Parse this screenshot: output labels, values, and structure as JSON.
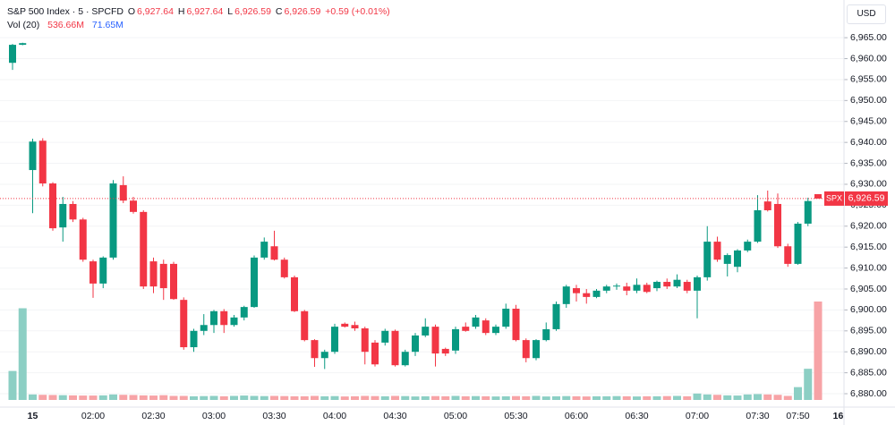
{
  "chart_data": {
    "type": "candlestick",
    "legend": {
      "symbol": "S&P 500 Index · 5 · SPCFD",
      "o_label": "O",
      "o": "6,927.64",
      "h_label": "H",
      "h": "6,927.64",
      "l_label": "L",
      "l": "6,926.59",
      "c_label": "C",
      "c": "6,926.59",
      "change": "+0.59 (+0.01%)"
    },
    "volume_legend": {
      "name": "Vol (20)",
      "volume": "536.66M",
      "average": "71.65M"
    },
    "currency": "USD",
    "last_price": {
      "value": 6926.59,
      "label": "6,926.59",
      "tag": "SPX"
    },
    "categories": [
      null,
      null,
      "15",
      null,
      null,
      null,
      null,
      null,
      "02:00",
      null,
      null,
      null,
      null,
      null,
      "02:30",
      null,
      null,
      null,
      null,
      null,
      "03:00",
      null,
      null,
      null,
      null,
      null,
      "03:30",
      null,
      null,
      null,
      null,
      null,
      "04:00",
      null,
      null,
      null,
      null,
      null,
      "04:30",
      null,
      null,
      null,
      null,
      null,
      "05:00",
      null,
      null,
      null,
      null,
      null,
      "05:30",
      null,
      null,
      null,
      null,
      null,
      "06:00",
      null,
      null,
      null,
      null,
      null,
      "06:30",
      null,
      null,
      null,
      null,
      null,
      "07:00",
      null,
      null,
      null,
      null,
      null,
      "07:30",
      null,
      null,
      null,
      "07:50",
      null,
      null,
      null,
      "16"
    ],
    "open": [
      6959.0,
      6963.3,
      6933.4,
      6940.4,
      6930.2,
      6919.7,
      6925.3,
      6921.6,
      6911.6,
      6906.3,
      6912.5,
      6929.8,
      6926.1,
      6923.4,
      6911.6,
      6911.0,
      6911.0,
      6902.4,
      6891.1,
      6895.0,
      6896.4,
      6899.7,
      6896.4,
      6898.2,
      6900.7,
      6912.5,
      6915.2,
      6912.0,
      6907.8,
      6899.7,
      6892.8,
      6888.5,
      6890.0,
      6896.7,
      6896.4,
      6895.6,
      6892.2,
      6892.2,
      6895.0,
      6886.8,
      6890.0,
      6893.9,
      6896.0,
      6890.7,
      6890.3,
      6896.0,
      6896.0,
      6897.5,
      6894.5,
      6896.0,
      6900.3,
      6892.8,
      6888.5,
      6892.8,
      6895.4,
      6901.4,
      6905.2,
      6904.0,
      6903.1,
      6904.6,
      6905.6,
      6905.6,
      6904.6,
      6906.0,
      6905.2,
      6906.7,
      6905.6,
      6906.7,
      6904.6,
      6907.8,
      6916.3,
      6911.0,
      6910.3,
      6914.2,
      6916.3,
      6925.9,
      6925.3,
      6915.2,
      6911.0,
      6920.6,
      6927.64,
      null,
      null
    ],
    "high": [
      6963.5,
      6963.8,
      6940.9,
      6941.0,
      6930.5,
      6927.0,
      6926.0,
      6922.0,
      6912.0,
      6912.8,
      6931.0,
      6931.9,
      6927.0,
      6923.8,
      6912.5,
      6912.0,
      6911.5,
      6903.0,
      6895.5,
      6899.0,
      6900.0,
      6900.2,
      6898.8,
      6901.0,
      6913.0,
      6917.3,
      6918.9,
      6912.5,
      6908.2,
      6900.0,
      6893.0,
      6890.5,
      6896.7,
      6897.0,
      6897.2,
      6896.0,
      6892.8,
      6895.5,
      6895.3,
      6890.5,
      6894.5,
      6898.0,
      6896.5,
      6891.0,
      6896.0,
      6897.0,
      6898.8,
      6898.0,
      6896.5,
      6901.5,
      6901.2,
      6893.2,
      6893.0,
      6897.0,
      6902.0,
      6906.0,
      6906.0,
      6905.0,
      6905.0,
      6906.0,
      6906.3,
      6906.5,
      6907.5,
      6906.5,
      6907.0,
      6907.5,
      6908.5,
      6907.2,
      6908.2,
      6920.0,
      6917.5,
      6913.5,
      6914.5,
      6916.8,
      6927.4,
      6928.5,
      6927.8,
      6915.8,
      6921.0,
      6926.8,
      6927.64,
      null,
      null
    ],
    "low": [
      6957.3,
      6963.2,
      6923.1,
      6929.5,
      6918.9,
      6916.3,
      6921.0,
      6911.5,
      6902.9,
      6905.2,
      6912.0,
      6925.5,
      6923.0,
      6905.0,
      6904.0,
      6902.4,
      6902.4,
      6890.5,
      6890.0,
      6894.0,
      6894.5,
      6894.5,
      6896.0,
      6897.5,
      6900.5,
      6912.0,
      6911.8,
      6907.5,
      6899.5,
      6892.5,
      6886.4,
      6885.9,
      6889.5,
      6895.8,
      6895.0,
      6887.0,
      6886.5,
      6891.5,
      6886.5,
      6886.5,
      6889.0,
      6893.5,
      6886.5,
      6889.0,
      6889.5,
      6894.8,
      6895.5,
      6894.0,
      6894.0,
      6895.5,
      6892.5,
      6887.5,
      6888.0,
      6892.5,
      6895.0,
      6900.5,
      6902.0,
      6901.5,
      6902.8,
      6904.0,
      6904.8,
      6903.5,
      6904.0,
      6904.0,
      6904.5,
      6905.0,
      6905.2,
      6904.0,
      6898.0,
      6907.0,
      6911.5,
      6908.0,
      6909.0,
      6913.8,
      6916.0,
      6923.5,
      6914.8,
      6910.3,
      6910.8,
      6920.0,
      6926.59,
      null,
      null
    ],
    "close": [
      6963.3,
      6963.7,
      6940.2,
      6930.2,
      6919.5,
      6925.3,
      6921.6,
      6912.0,
      6906.3,
      6912.5,
      6930.2,
      6926.1,
      6923.4,
      6905.6,
      6905.6,
      6905.2,
      6902.6,
      6891.1,
      6895.0,
      6896.4,
      6899.7,
      6896.4,
      6898.2,
      6900.7,
      6912.5,
      6916.3,
      6912.0,
      6907.8,
      6899.7,
      6892.8,
      6888.5,
      6890.0,
      6896.0,
      6896.0,
      6895.6,
      6890.0,
      6887.0,
      6895.0,
      6886.8,
      6890.0,
      6893.9,
      6896.0,
      6889.6,
      6889.6,
      6895.4,
      6895.0,
      6898.2,
      6894.5,
      6896.0,
      6900.3,
      6892.8,
      6888.5,
      6892.8,
      6895.4,
      6901.4,
      6905.6,
      6904.0,
      6903.1,
      6904.6,
      6905.6,
      6905.8,
      6904.6,
      6906.0,
      6904.3,
      6906.7,
      6905.6,
      6907.2,
      6904.6,
      6907.8,
      6916.3,
      6912.0,
      6913.1,
      6914.2,
      6916.3,
      6923.8,
      6923.8,
      6915.2,
      6911.0,
      6920.6,
      6926.0,
      6926.59,
      null,
      null
    ],
    "volume": [
      158,
      500,
      30,
      28,
      27,
      26,
      25,
      24,
      24,
      25,
      30,
      28,
      27,
      25,
      24,
      26,
      22,
      22,
      20,
      21,
      22,
      20,
      22,
      24,
      22,
      21,
      22,
      21,
      20,
      20,
      22,
      20,
      21,
      19,
      20,
      22,
      21,
      20,
      22,
      21,
      19,
      20,
      21,
      20,
      22,
      20,
      21,
      20,
      19,
      20,
      21,
      20,
      22,
      19,
      20,
      21,
      20,
      19,
      20,
      20,
      21,
      20,
      19,
      20,
      20,
      21,
      22,
      20,
      35,
      30,
      28,
      25,
      24,
      30,
      32,
      30,
      28,
      22,
      70,
      170,
      536.66,
      null,
      null
    ],
    "up_color": "#089981",
    "down_color": "#f23645",
    "volume_up_color": "#8ccfc4",
    "volume_down_color": "#f7a3a6",
    "ylim": [
      6876.8,
      6974.0
    ],
    "yticks": [
      {
        "value": 6880,
        "label": "6,880.00"
      },
      {
        "value": 6885,
        "label": "6,885.00"
      },
      {
        "value": 6890,
        "label": "6,890.00"
      },
      {
        "value": 6895,
        "label": "6,895.00"
      },
      {
        "value": 6900,
        "label": "6,900.00"
      },
      {
        "value": 6905,
        "label": "6,905.00"
      },
      {
        "value": 6910,
        "label": "6,910.00"
      },
      {
        "value": 6915,
        "label": "6,915.00"
      },
      {
        "value": 6920,
        "label": "6,920.00"
      },
      {
        "value": 6925,
        "label": "6,925.00"
      },
      {
        "value": 6930,
        "label": "6,930.00"
      },
      {
        "value": 6935,
        "label": "6,935.00"
      },
      {
        "value": 6940,
        "label": "6,940.00"
      },
      {
        "value": 6945,
        "label": "6,945.00"
      },
      {
        "value": 6950,
        "label": "6,950.00"
      },
      {
        "value": 6955,
        "label": "6,955.00"
      },
      {
        "value": 6960,
        "label": "6,960.00"
      },
      {
        "value": 6965,
        "label": "6,965.00"
      }
    ],
    "grid": true
  }
}
